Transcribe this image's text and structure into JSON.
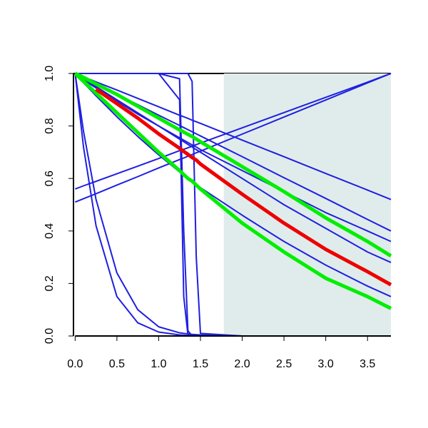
{
  "chart_data": {
    "type": "line",
    "x": [
      0,
      0.1,
      0.25,
      0.5,
      0.75,
      1,
      1.25,
      1.3,
      1.35,
      1.4,
      1.45,
      1.5,
      2,
      2.5,
      3,
      3.5,
      3.78
    ],
    "series": [
      {
        "color": "#1f1fe0",
        "linewidth": 2,
        "values": [
          1,
          0.987,
          0.968,
          0.937,
          0.905,
          0.873,
          0.841,
          0.835,
          0.829,
          0.822,
          0.816,
          0.81,
          0.746,
          0.683,
          0.619,
          0.556,
          0.52
        ]
      },
      {
        "color": "#1f1fe0",
        "linewidth": 2,
        "values": [
          1,
          0.984,
          0.96,
          0.921,
          0.881,
          0.841,
          0.802,
          0.794,
          0.786,
          0.778,
          0.77,
          0.762,
          0.683,
          0.603,
          0.524,
          0.444,
          0.4
        ]
      },
      {
        "color": "#1f1fe0",
        "linewidth": 2,
        "values": [
          0.56,
          0.572,
          0.589,
          0.618,
          0.647,
          0.676,
          0.706,
          0.711,
          0.717,
          0.723,
          0.729,
          0.735,
          0.793,
          0.851,
          0.909,
          0.967,
          1
        ]
      },
      {
        "color": "#1f1fe0",
        "linewidth": 2,
        "values": [
          0.51,
          0.523,
          0.542,
          0.575,
          0.607,
          0.64,
          0.672,
          0.678,
          0.685,
          0.691,
          0.698,
          0.704,
          0.769,
          0.834,
          0.899,
          0.964,
          1
        ]
      },
      {
        "color": "#1f1fe0",
        "linewidth": 2,
        "values": [
          1,
          0.98,
          0.95,
          0.9,
          0.85,
          0.8,
          0.75,
          0.74,
          0.73,
          0.72,
          0.71,
          0.7,
          0.6,
          0.5,
          0.41,
          0.32,
          0.28
        ]
      },
      {
        "color": "#1f1fe0",
        "linewidth": 2,
        "values": [
          1,
          0.965,
          0.915,
          0.835,
          0.76,
          0.69,
          0.625,
          0.612,
          0.6,
          0.588,
          0.576,
          0.565,
          0.46,
          0.36,
          0.27,
          0.19,
          0.15
        ]
      },
      {
        "color": "#1f1fe0",
        "linewidth": 2,
        "values": [
          1,
          0.975,
          0.945,
          0.895,
          0.845,
          0.8,
          0.755,
          0.746,
          0.737,
          0.728,
          0.72,
          0.71,
          0.63,
          0.55,
          0.47,
          0.4,
          0.36
        ]
      },
      {
        "color": "#1f1fe0",
        "linewidth": 2,
        "values": [
          1,
          0.72,
          0.42,
          0.15,
          0.05,
          0.015,
          0.004,
          0.003,
          0.002,
          0.002,
          0.001,
          0.001,
          0,
          0,
          0,
          0,
          0
        ]
      },
      {
        "color": "#1f1fe0",
        "linewidth": 2,
        "values": [
          1,
          0.78,
          0.52,
          0.24,
          0.1,
          0.035,
          0.012,
          0.01,
          0.008,
          0.006,
          0.005,
          0.004,
          0,
          0,
          0,
          0,
          0
        ]
      },
      {
        "color": "#1f1fe0",
        "linewidth": 2,
        "values": [
          1,
          1,
          1,
          1,
          1,
          1,
          0.98,
          0.4,
          0.02,
          0,
          0,
          0,
          0,
          0,
          0,
          0,
          0
        ]
      },
      {
        "color": "#1f1fe0",
        "linewidth": 2,
        "values": [
          1,
          1,
          1,
          1,
          1,
          1,
          1,
          1,
          1,
          0.97,
          0.3,
          0.01,
          0,
          0,
          0,
          0,
          0
        ]
      },
      {
        "color": "#1f1fe0",
        "linewidth": 2,
        "values": [
          1,
          1,
          1,
          1,
          1,
          1,
          0.9,
          0.15,
          0.005,
          0,
          0,
          0,
          0,
          0,
          0,
          0,
          0
        ]
      },
      {
        "color": "#00ee00",
        "linewidth": 5,
        "values": [
          1,
          0.985,
          0.96,
          0.92,
          0.875,
          0.83,
          0.785,
          0.777,
          0.768,
          0.76,
          0.75,
          0.74,
          0.645,
          0.55,
          0.45,
          0.36,
          0.305
        ]
      },
      {
        "color": "#00ee00",
        "linewidth": 5,
        "values": [
          1,
          0.97,
          0.925,
          0.85,
          0.775,
          0.7,
          0.63,
          0.615,
          0.6,
          0.59,
          0.575,
          0.56,
          0.43,
          0.32,
          0.22,
          0.15,
          0.105
        ]
      },
      {
        "color": "#ee0000",
        "linewidth": 5,
        "values": [
          null,
          null,
          0.94,
          0.885,
          0.83,
          0.77,
          0.715,
          0.703,
          0.692,
          0.68,
          0.67,
          0.655,
          0.54,
          0.43,
          0.33,
          0.245,
          0.195
        ]
      }
    ],
    "shade": {
      "xmin": 1.78,
      "xmax": 3.78,
      "color": "#e0ecec"
    },
    "xlim": [
      -0.02,
      3.78
    ],
    "ylim": [
      0,
      1
    ],
    "xticks": [
      {
        "value": 0,
        "label": "0.0"
      },
      {
        "value": 0.5,
        "label": "0.5"
      },
      {
        "value": 1,
        "label": "1.0"
      },
      {
        "value": 1.5,
        "label": "1.5"
      },
      {
        "value": 2,
        "label": "2.0"
      },
      {
        "value": 2.5,
        "label": "2.5"
      },
      {
        "value": 3,
        "label": "3.0"
      },
      {
        "value": 3.5,
        "label": "3.5"
      }
    ],
    "yticks": [
      {
        "value": 0,
        "label": "0.0"
      },
      {
        "value": 0.2,
        "label": "0.2"
      },
      {
        "value": 0.4,
        "label": "0.4"
      },
      {
        "value": 0.6,
        "label": "0.6"
      },
      {
        "value": 0.8,
        "label": "0.8"
      },
      {
        "value": 1,
        "label": "1.0"
      }
    ]
  }
}
